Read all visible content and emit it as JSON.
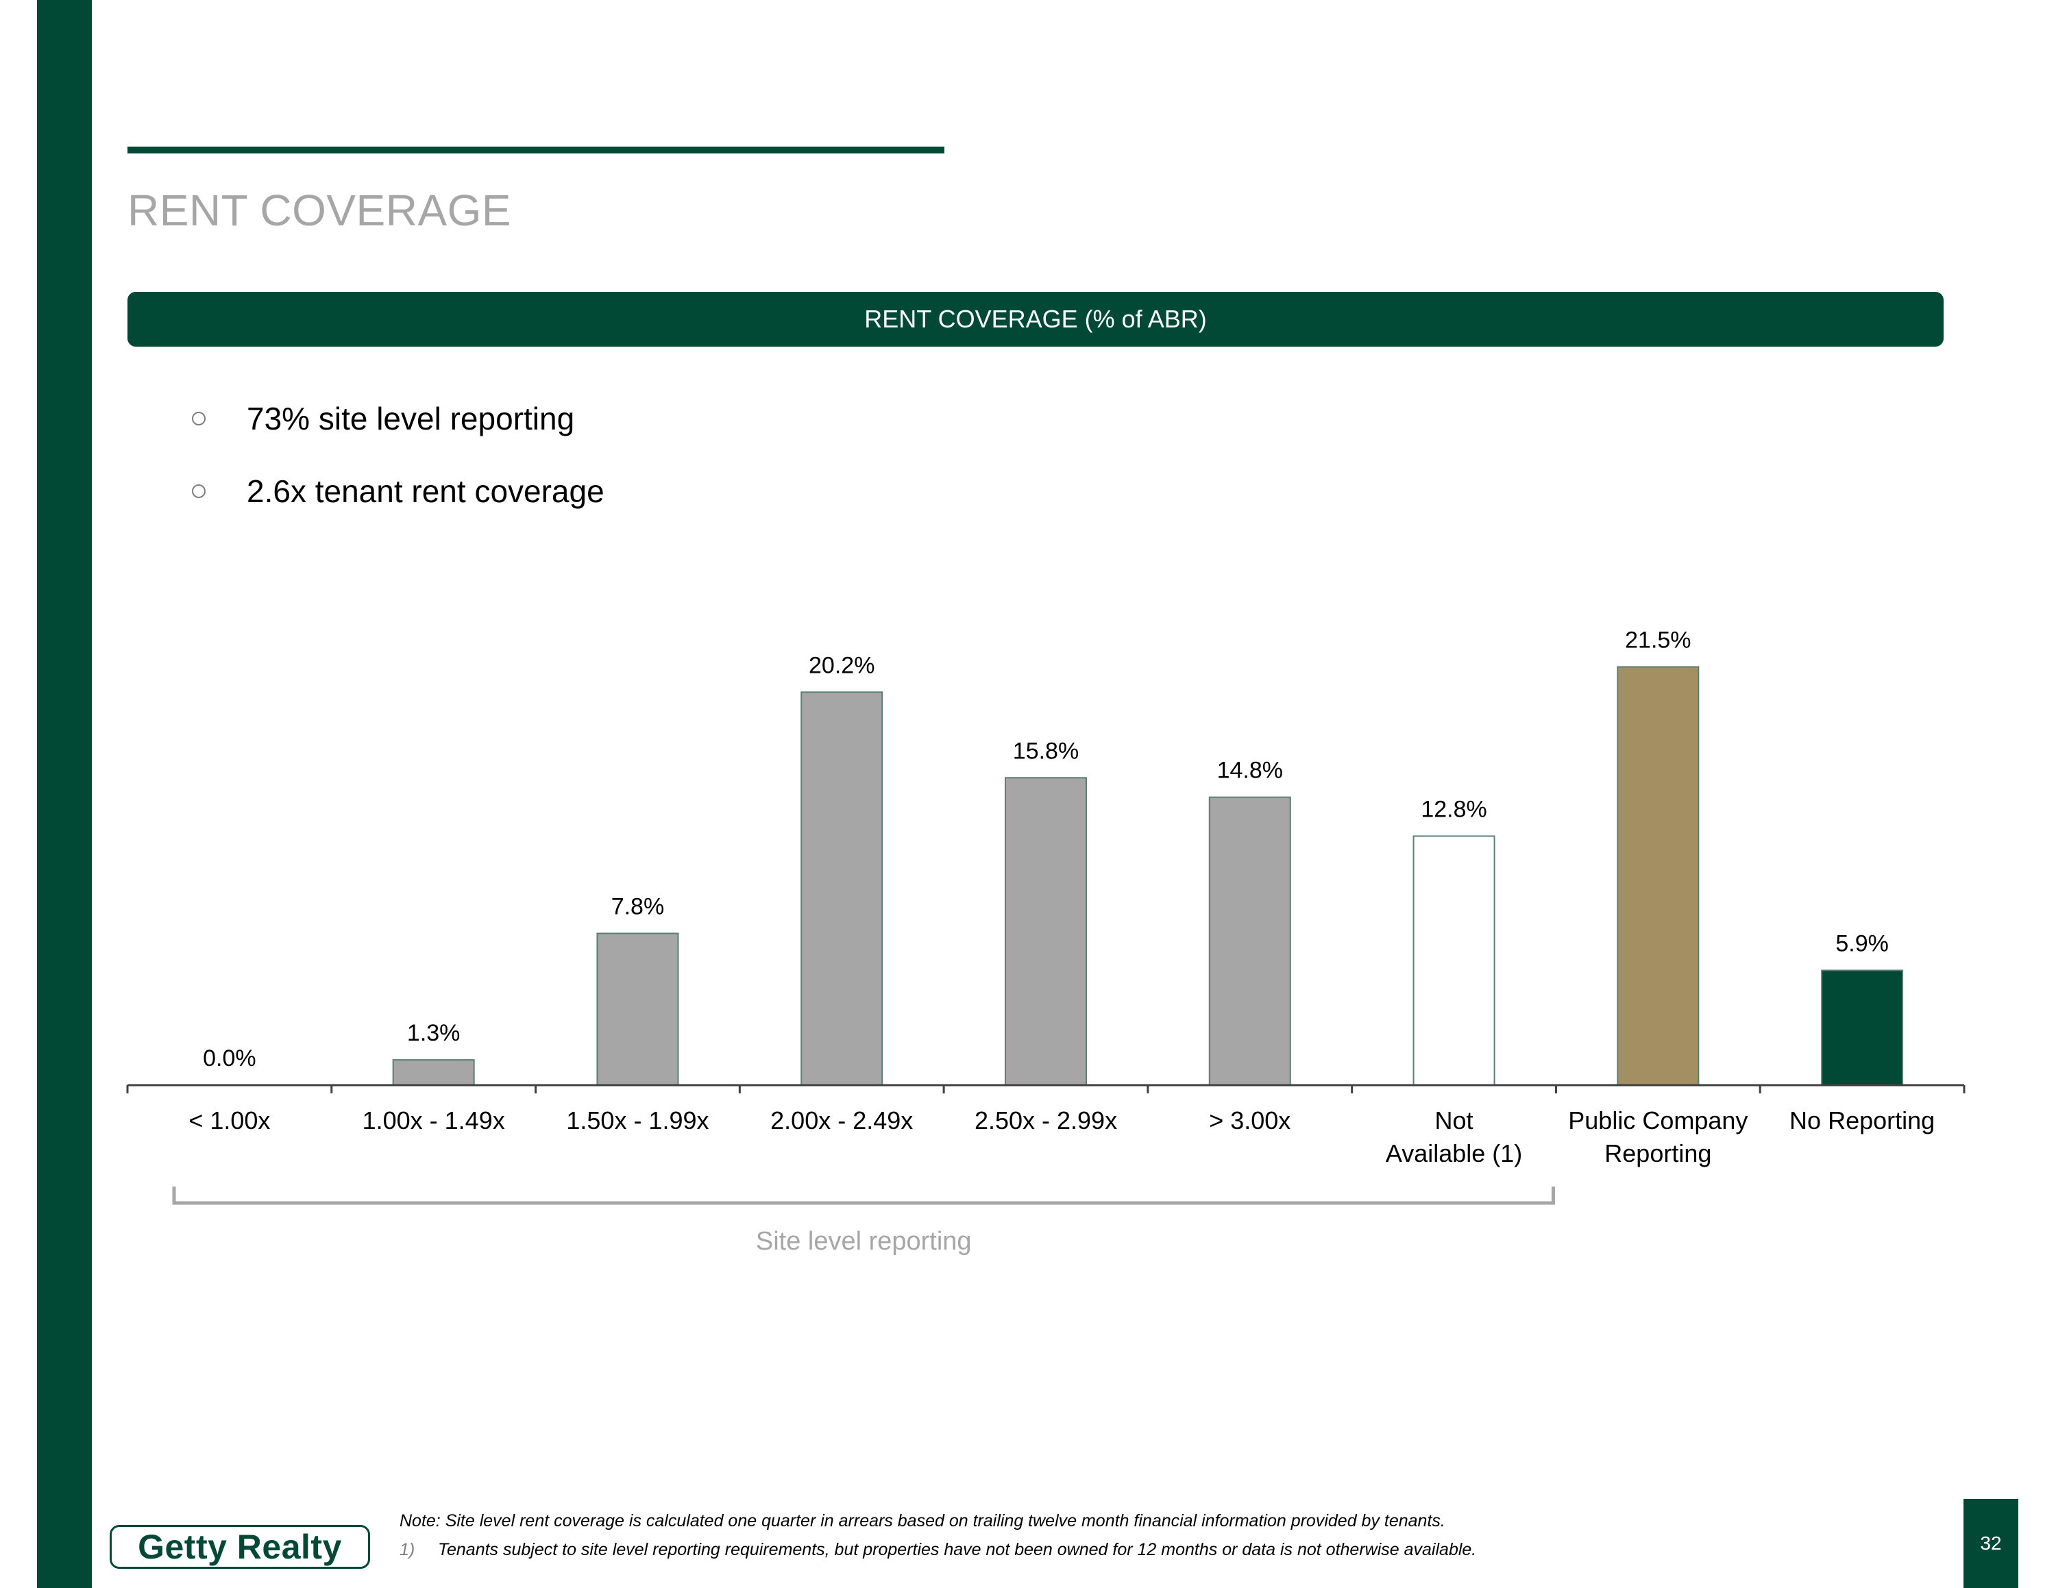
{
  "page": {
    "title": "RENT COVERAGE",
    "chart_header": "RENT COVERAGE (% of ABR)",
    "page_number": "32"
  },
  "bullets": [
    "73% site level reporting",
    "2.6x tenant rent coverage"
  ],
  "bracket_label": "Site level reporting",
  "footnotes": {
    "note": "Note: Site level rent coverage is calculated one quarter in arrears based on trailing twelve month financial information provided by tenants.",
    "item_number": "1)",
    "item_text": "Tenants subject to site level reporting requirements, but properties have not been owned for 12 months or data is not otherwise available."
  },
  "logo": {
    "text": "Getty Realty"
  },
  "colors": {
    "brand_green": "#014935",
    "bar_gray": "#a6a6a6",
    "bar_tan": "#a38f62",
    "bar_outline": "#5c7f72",
    "title_gray": "#a6a6a6"
  },
  "chart_data": {
    "type": "bar",
    "title": "RENT COVERAGE (% of ABR)",
    "xlabel": "",
    "ylabel": "",
    "ylim": [
      0,
      25
    ],
    "grid": false,
    "categories": [
      [
        "< 1.00x"
      ],
      [
        "1.00x - 1.49x"
      ],
      [
        "1.50x - 1.99x"
      ],
      [
        "2.00x - 2.49x"
      ],
      [
        "2.50x - 2.99x"
      ],
      [
        "> 3.00x"
      ],
      [
        "Not",
        "Available (1)"
      ],
      [
        "Public Company",
        "Reporting"
      ],
      [
        "No Reporting"
      ]
    ],
    "values": [
      0.0,
      1.3,
      7.8,
      20.2,
      15.8,
      14.8,
      12.8,
      21.5,
      5.9
    ],
    "labels": [
      "0.0%",
      "1.3%",
      "7.8%",
      "20.2%",
      "15.8%",
      "14.8%",
      "12.8%",
      "21.5%",
      "5.9%"
    ],
    "bar_fills": [
      "#a6a6a6",
      "#a6a6a6",
      "#a6a6a6",
      "#a6a6a6",
      "#a6a6a6",
      "#a6a6a6",
      "#ffffff",
      "#a38f62",
      "#014935"
    ],
    "bracket_groups": [
      0,
      6
    ]
  }
}
